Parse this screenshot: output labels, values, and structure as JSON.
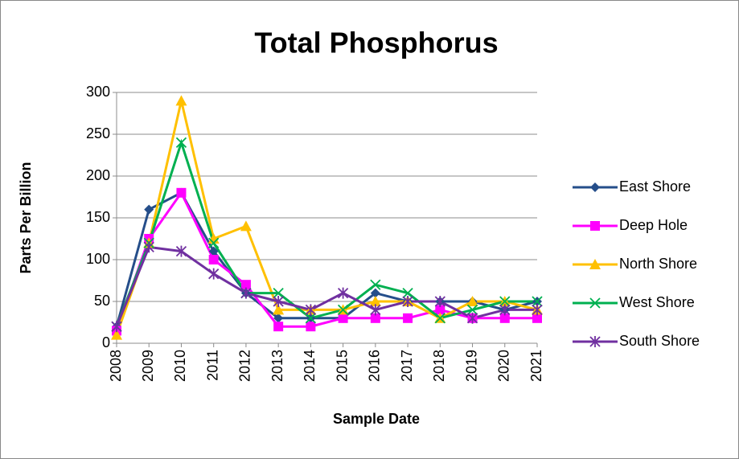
{
  "chart_data": {
    "type": "line",
    "title": "Total Phosphorus",
    "x_label": "Sample Date",
    "y_label": "Parts Per Billion",
    "categories": [
      "2008",
      "2009",
      "2010",
      "2011",
      "2012",
      "2013",
      "2014",
      "2015",
      "2016",
      "2017",
      "2018",
      "2019",
      "2020",
      "2021"
    ],
    "ylim": [
      0,
      300
    ],
    "yticks": [
      0,
      50,
      100,
      150,
      200,
      250,
      300
    ],
    "grid": true,
    "legend": "right",
    "series": [
      {
        "name": "East Shore",
        "color": "#254e8a",
        "marker": "diamond",
        "values": [
          20,
          160,
          180,
          110,
          60,
          30,
          30,
          30,
          60,
          50,
          50,
          50,
          40,
          50
        ]
      },
      {
        "name": "Deep Hole",
        "color": "#ff00ff",
        "marker": "square",
        "values": [
          15,
          125,
          180,
          100,
          70,
          20,
          20,
          30,
          30,
          30,
          40,
          30,
          30,
          30
        ]
      },
      {
        "name": "North Shore",
        "color": "#ffc000",
        "marker": "triangle",
        "values": [
          10,
          120,
          290,
          125,
          140,
          40,
          40,
          40,
          50,
          50,
          30,
          50,
          50,
          40
        ]
      },
      {
        "name": "West Shore",
        "color": "#00b050",
        "marker": "x",
        "values": [
          20,
          120,
          240,
          120,
          60,
          60,
          30,
          40,
          70,
          60,
          30,
          40,
          50,
          50
        ]
      },
      {
        "name": "South Shore",
        "color": "#7030a0",
        "marker": "star",
        "values": [
          20,
          115,
          110,
          83,
          60,
          50,
          40,
          60,
          40,
          50,
          50,
          30,
          40,
          40
        ]
      }
    ]
  }
}
